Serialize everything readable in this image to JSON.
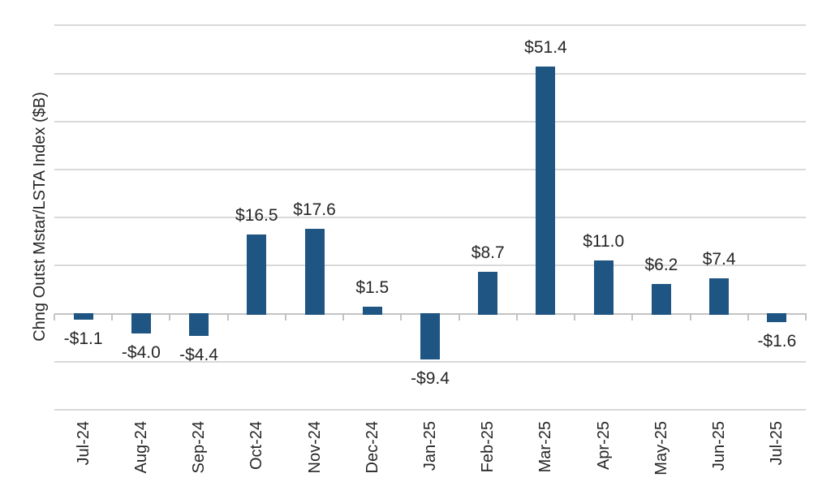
{
  "chart_data": {
    "type": "bar",
    "title": "",
    "xlabel": "",
    "ylabel": "Chng Outst Mstar/LSTA Index ($B)",
    "categories": [
      "Jul-24",
      "Aug-24",
      "Sep-24",
      "Oct-24",
      "Nov-24",
      "Dec-24",
      "Jan-25",
      "Feb-25",
      "Mar-25",
      "Apr-25",
      "May-25",
      "Jun-25",
      "Jul-25"
    ],
    "values": [
      -1.1,
      -4.0,
      -4.4,
      16.5,
      17.6,
      1.5,
      -9.4,
      8.7,
      51.4,
      11.0,
      6.2,
      7.4,
      -1.6
    ],
    "data_labels": [
      "-$1.1",
      "-$4.0",
      "-$4.4",
      "$16.5",
      "$17.6",
      "$1.5",
      "-$9.4",
      "$8.7",
      "$51.4",
      "$11.0",
      "$6.2",
      "$7.4",
      "-$1.6"
    ],
    "ylim": [
      -20,
      60
    ],
    "gridline_interval": 10,
    "grid_on": true,
    "legend_position": "none",
    "y_tick_labels_visible": false,
    "colors": {
      "bar": "#1F5582",
      "gridline": "#D9D9D9",
      "axis_line": "#C3C3C3",
      "text": "#262626"
    }
  }
}
